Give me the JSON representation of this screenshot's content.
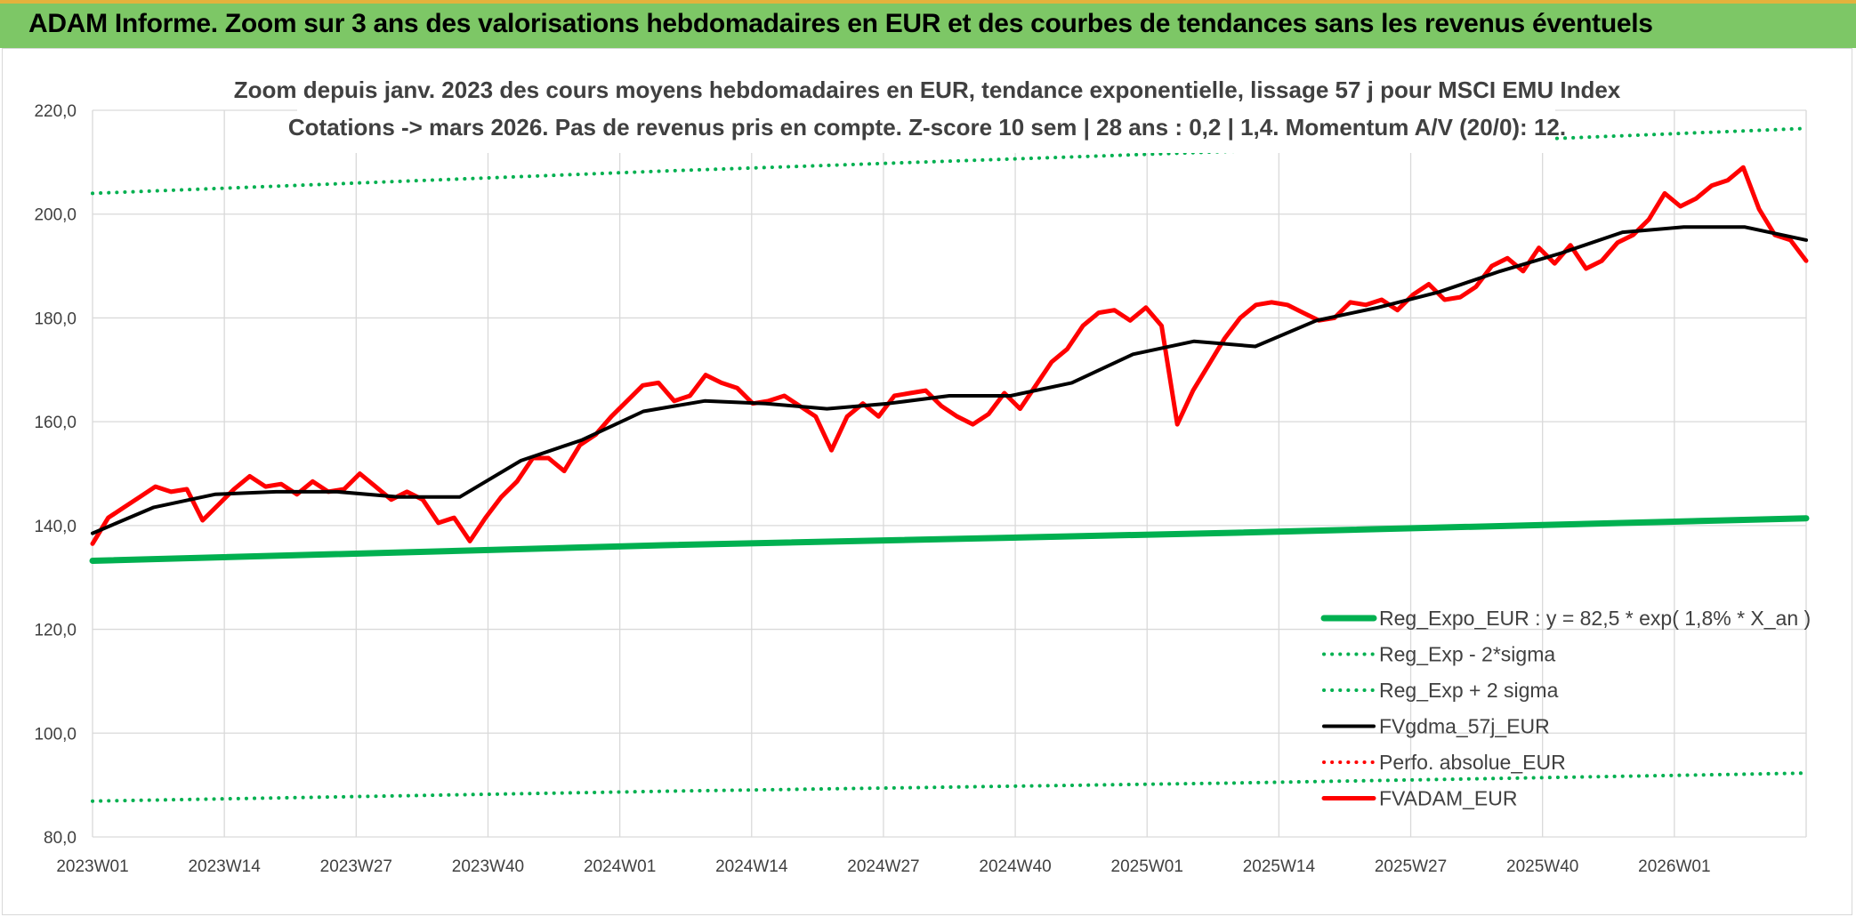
{
  "header": {
    "title": "ADAM Informe. Zoom sur 3 ans des valorisations hebdomadaires en EUR et des courbes de tendances sans les revenus éventuels"
  },
  "chart_data": {
    "type": "line",
    "title": "Zoom depuis janv. 2023 des cours moyens hebdomadaires en EUR, tendance exponentielle, lissage 57 j pour MSCI EMU Index",
    "subtitle": "Cotations -> mars 2026. Pas de revenus pris en compte. Z-score 10 sem | 28 ans : 0,2 | 1,4. Momentum A/V (20/0): 12.",
    "xlabel": "",
    "ylabel": "",
    "ylim": [
      80,
      220
    ],
    "y_ticks": [
      "80,0",
      "100,0",
      "120,0",
      "140,0",
      "160,0",
      "180,0",
      "200,0",
      "220,0"
    ],
    "x_ticks": [
      "2023W01",
      "2023W14",
      "2023W27",
      "2023W40",
      "2024W01",
      "2024W14",
      "2024W27",
      "2024W40",
      "2025W01",
      "2025W14",
      "2025W27",
      "2025W40",
      "2026W01"
    ],
    "x_tick_index": [
      0,
      13,
      26,
      39,
      52,
      65,
      78,
      91,
      104,
      117,
      130,
      143,
      156
    ],
    "n_points": 170,
    "grid": true,
    "legend_position": "bottom-right",
    "series": [
      {
        "name": "Reg_Expo_EUR : y = 82,5 * exp( 1,8% *  X_an )",
        "color": "#00b050",
        "style": "solid-thick",
        "values": [
          133.2,
          136.2,
          138.6,
          141.4
        ]
      },
      {
        "name": "Reg_Exp - 2*sigma",
        "color": "#00b050",
        "style": "dotted",
        "values": [
          86.9,
          88.8,
          90.4,
          92.3
        ]
      },
      {
        "name": "Reg_Exp + 2 sigma",
        "color": "#00b050",
        "style": "dotted",
        "values": [
          204.0,
          208.3,
          212.1,
          216.5
        ]
      },
      {
        "name": "FVgdma_57j_EUR",
        "color": "#000000",
        "style": "solid",
        "values": [
          138.5,
          143.5,
          146.0,
          146.5,
          146.5,
          145.5,
          145.5,
          152.5,
          156.5,
          162.0,
          164.0,
          163.5,
          162.5,
          163.5,
          165.0,
          165.0,
          167.5,
          173.0,
          175.5,
          174.5,
          179.5,
          182.0,
          185.0,
          189.0,
          192.5,
          196.5,
          197.5,
          197.5,
          195.0
        ]
      },
      {
        "name": "Perfo. absolue_EUR",
        "color": "#ff0000",
        "style": "dotted",
        "values": []
      },
      {
        "name": "FVADAM_EUR",
        "color": "#ff0000",
        "style": "solid-thick",
        "values": [
          136.5,
          141.5,
          143.5,
          145.5,
          147.5,
          146.5,
          147.0,
          141.0,
          144.0,
          147.0,
          149.5,
          147.5,
          148.0,
          146.0,
          148.5,
          146.5,
          147.0,
          150.0,
          147.5,
          145.0,
          146.5,
          145.0,
          140.5,
          141.5,
          137.0,
          141.5,
          145.5,
          148.5,
          153.0,
          153.0,
          150.5,
          155.5,
          157.5,
          161.0,
          164.0,
          167.0,
          167.5,
          164.0,
          165.0,
          169.0,
          167.5,
          166.5,
          163.5,
          164.0,
          165.0,
          163.0,
          161.0,
          154.5,
          161.0,
          163.5,
          161.0,
          165.0,
          165.5,
          166.0,
          163.0,
          161.0,
          159.5,
          161.5,
          165.5,
          162.5,
          167.0,
          171.5,
          174.0,
          178.5,
          181.0,
          181.5,
          179.5,
          182.0,
          178.5,
          159.5,
          166.0,
          171.0,
          176.0,
          180.0,
          182.5,
          183.0,
          182.5,
          181.0,
          179.5,
          180.0,
          183.0,
          182.5,
          183.5,
          181.5,
          184.5,
          186.5,
          183.5,
          184.0,
          186.0,
          190.0,
          191.5,
          189.0,
          193.5,
          190.5,
          194.0,
          189.5,
          191.0,
          194.5,
          196.0,
          199.0,
          204.0,
          201.5,
          203.0,
          205.5,
          206.5,
          209.0,
          201.0,
          196.0,
          195.0,
          191.0
        ]
      }
    ]
  }
}
